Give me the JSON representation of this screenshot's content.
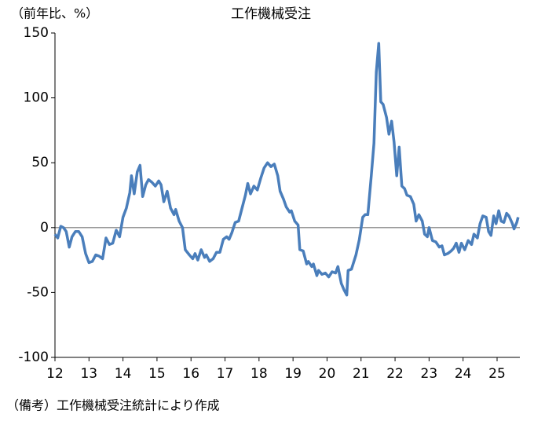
{
  "chart_data": {
    "type": "line",
    "title": "工作機械受注",
    "y_label": "（前年比、%）",
    "note": "（備考）工作機械受注統計により作成",
    "color": "#4a7ebb",
    "grid": false,
    "xlim": [
      12,
      25.67
    ],
    "xticks": [
      12,
      13,
      14,
      15,
      16,
      17,
      18,
      19,
      20,
      21,
      22,
      23,
      24,
      25
    ],
    "ylim": [
      -100,
      150
    ],
    "yticks": [
      -100,
      -50,
      0,
      50,
      100,
      150
    ],
    "x": [
      12.0,
      12.08,
      12.17,
      12.25,
      12.33,
      12.42,
      12.5,
      12.6,
      12.7,
      12.8,
      12.9,
      13.0,
      13.1,
      13.2,
      13.3,
      13.4,
      13.5,
      13.6,
      13.7,
      13.8,
      13.9,
      14.0,
      14.1,
      14.2,
      14.25,
      14.33,
      14.42,
      14.5,
      14.58,
      14.67,
      14.75,
      14.85,
      14.95,
      15.05,
      15.12,
      15.2,
      15.3,
      15.4,
      15.5,
      15.55,
      15.65,
      15.75,
      15.83,
      15.95,
      16.05,
      16.12,
      16.2,
      16.3,
      16.4,
      16.45,
      16.55,
      16.65,
      16.75,
      16.85,
      16.95,
      17.05,
      17.12,
      17.2,
      17.3,
      17.4,
      17.5,
      17.6,
      17.67,
      17.75,
      17.85,
      17.95,
      18.05,
      18.15,
      18.25,
      18.35,
      18.45,
      18.55,
      18.62,
      18.72,
      18.8,
      18.9,
      18.95,
      19.05,
      19.15,
      19.2,
      19.3,
      19.4,
      19.45,
      19.55,
      19.6,
      19.7,
      19.75,
      19.85,
      19.95,
      20.05,
      20.15,
      20.25,
      20.32,
      20.42,
      20.5,
      20.58,
      20.62,
      20.72,
      20.85,
      20.95,
      21.05,
      21.12,
      21.2,
      21.3,
      21.38,
      21.45,
      21.52,
      21.58,
      21.65,
      21.75,
      21.82,
      21.9,
      21.97,
      22.05,
      22.12,
      22.2,
      22.28,
      22.35,
      22.45,
      22.55,
      22.62,
      22.7,
      22.8,
      22.87,
      22.95,
      23.0,
      23.1,
      23.2,
      23.3,
      23.38,
      23.45,
      23.55,
      23.65,
      23.72,
      23.8,
      23.88,
      23.95,
      24.05,
      24.15,
      24.25,
      24.32,
      24.42,
      24.5,
      24.58,
      24.68,
      24.75,
      24.82,
      24.9,
      24.97,
      25.05,
      25.12,
      25.2,
      25.28,
      25.35,
      25.45,
      25.5,
      25.58,
      25.62
    ],
    "values": [
      -5,
      -8,
      1,
      0,
      -3,
      -15,
      -7,
      -3,
      -3,
      -7,
      -20,
      -27,
      -26,
      -21,
      -22,
      -24,
      -8,
      -13,
      -12,
      -2,
      -7,
      8,
      15,
      27,
      40,
      26,
      43,
      48,
      24,
      33,
      37,
      35,
      32,
      36,
      33,
      20,
      28,
      15,
      10,
      14,
      5,
      0,
      -17,
      -21,
      -24,
      -20,
      -25,
      -17,
      -23,
      -21,
      -26,
      -24,
      -19,
      -19,
      -9,
      -7,
      -9,
      -4,
      4,
      5,
      15,
      25,
      34,
      26,
      32,
      29,
      38,
      46,
      50,
      47,
      49,
      40,
      28,
      22,
      16,
      12,
      13,
      5,
      2,
      -17,
      -18,
      -28,
      -26,
      -30,
      -28,
      -37,
      -33,
      -36,
      -35,
      -38,
      -34,
      -35,
      -30,
      -43,
      -48,
      -52,
      -33,
      -32,
      -21,
      -9,
      8,
      10,
      10,
      40,
      65,
      120,
      142,
      97,
      95,
      85,
      72,
      82,
      66,
      40,
      62,
      32,
      30,
      25,
      24,
      18,
      5,
      10,
      5,
      -5,
      -7,
      0,
      -10,
      -11,
      -15,
      -14,
      -21,
      -20,
      -18,
      -16,
      -12,
      -19,
      -12,
      -17,
      -10,
      -13,
      -5,
      -8,
      3,
      9,
      8,
      -3,
      -6,
      9,
      3,
      13,
      5,
      4,
      11,
      9,
      3,
      -1,
      4,
      8
    ]
  }
}
